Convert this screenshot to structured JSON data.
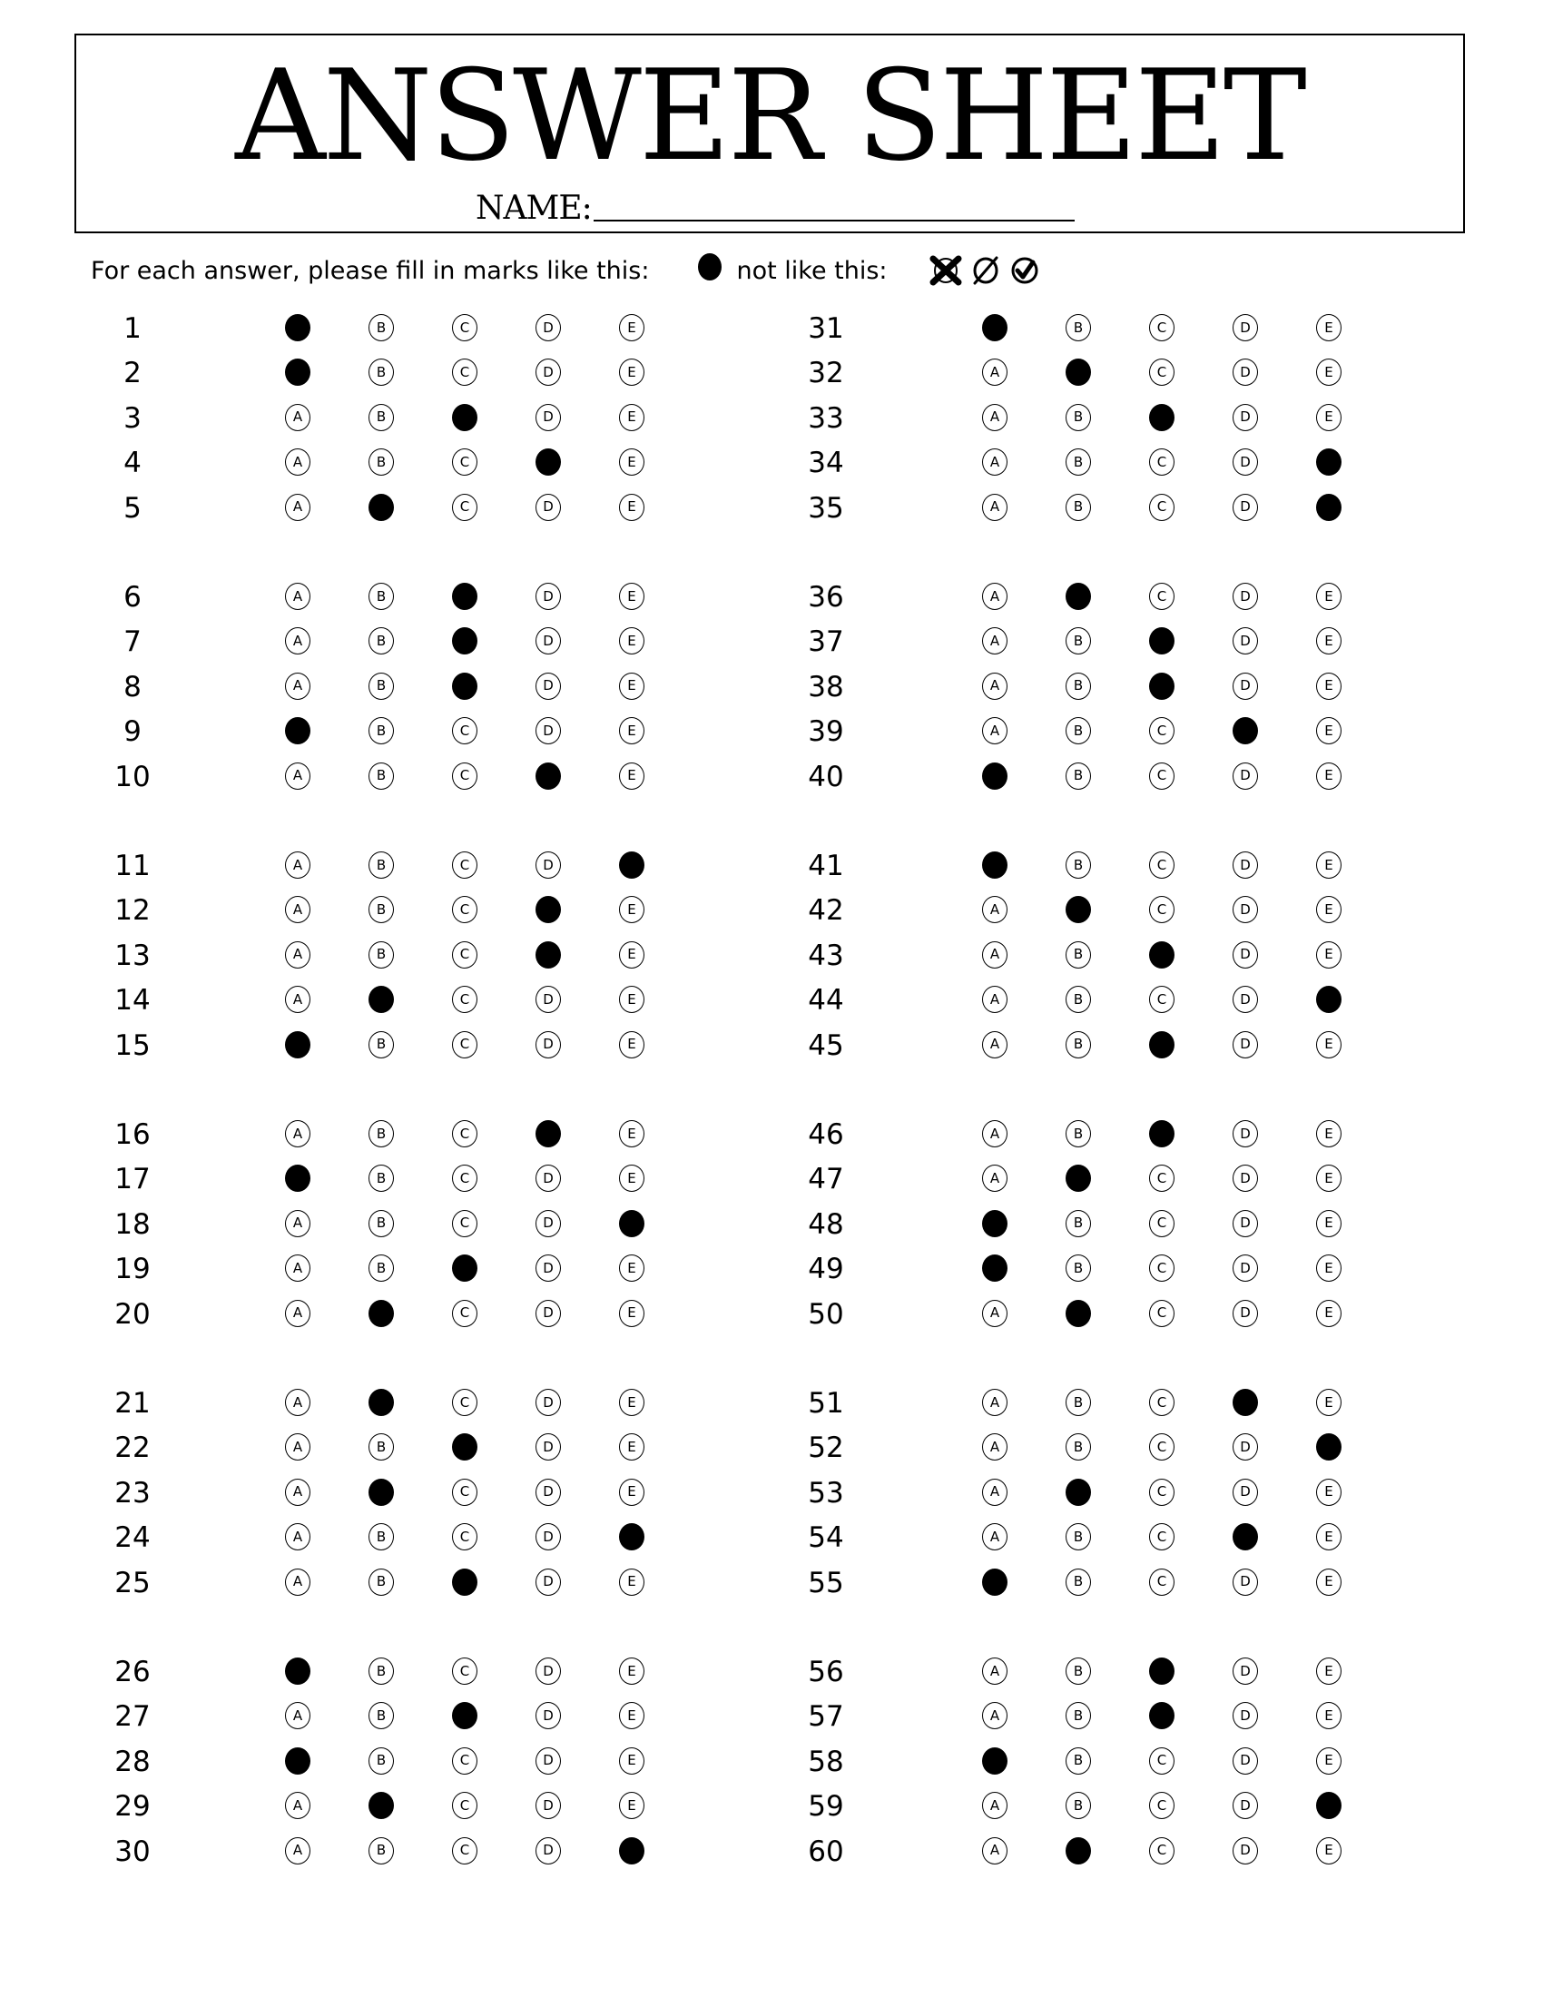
{
  "header": {
    "title": "ANSWER SHEET",
    "name_label": "NAME:"
  },
  "instructions": {
    "text_before": "For each answer, please fill in marks like this:",
    "text_after": "not like this:",
    "good_mark_icon": "filled-circle-icon",
    "bad_mark_icons": [
      "crossed-circle-icon",
      "slashed-circle-icon",
      "checked-circle-icon"
    ]
  },
  "options": [
    "A",
    "B",
    "C",
    "D",
    "E"
  ],
  "questions": [
    {
      "number": "1",
      "answer": "A"
    },
    {
      "number": "2",
      "answer": "A"
    },
    {
      "number": "3",
      "answer": "C"
    },
    {
      "number": "4",
      "answer": "D"
    },
    {
      "number": "5",
      "answer": "B"
    },
    {
      "number": "6",
      "answer": "C"
    },
    {
      "number": "7",
      "answer": "C"
    },
    {
      "number": "8",
      "answer": "C"
    },
    {
      "number": "9",
      "answer": "A"
    },
    {
      "number": "10",
      "answer": "D"
    },
    {
      "number": "11",
      "answer": "E"
    },
    {
      "number": "12",
      "answer": "D"
    },
    {
      "number": "13",
      "answer": "D"
    },
    {
      "number": "14",
      "answer": "B"
    },
    {
      "number": "15",
      "answer": "A"
    },
    {
      "number": "16",
      "answer": "D"
    },
    {
      "number": "17",
      "answer": "A"
    },
    {
      "number": "18",
      "answer": "E"
    },
    {
      "number": "19",
      "answer": "C"
    },
    {
      "number": "20",
      "answer": "B"
    },
    {
      "number": "21",
      "answer": "B"
    },
    {
      "number": "22",
      "answer": "C"
    },
    {
      "number": "23",
      "answer": "B"
    },
    {
      "number": "24",
      "answer": "E"
    },
    {
      "number": "25",
      "answer": "C"
    },
    {
      "number": "26",
      "answer": "A"
    },
    {
      "number": "27",
      "answer": "C"
    },
    {
      "number": "28",
      "answer": "A"
    },
    {
      "number": "29",
      "answer": "B"
    },
    {
      "number": "30",
      "answer": "E"
    },
    {
      "number": "31",
      "answer": "A"
    },
    {
      "number": "32",
      "answer": "B"
    },
    {
      "number": "33",
      "answer": "C"
    },
    {
      "number": "34",
      "answer": "E"
    },
    {
      "number": "35",
      "answer": "E"
    },
    {
      "number": "36",
      "answer": "B"
    },
    {
      "number": "37",
      "answer": "C"
    },
    {
      "number": "38",
      "answer": "C"
    },
    {
      "number": "39",
      "answer": "D"
    },
    {
      "number": "40",
      "answer": "A"
    },
    {
      "number": "41",
      "answer": "A"
    },
    {
      "number": "42",
      "answer": "B"
    },
    {
      "number": "43",
      "answer": "C"
    },
    {
      "number": "44",
      "answer": "E"
    },
    {
      "number": "45",
      "answer": "C"
    },
    {
      "number": "46",
      "answer": "C"
    },
    {
      "number": "47",
      "answer": "B"
    },
    {
      "number": "48",
      "answer": "A"
    },
    {
      "number": "49",
      "answer": "A"
    },
    {
      "number": "50",
      "answer": "B"
    },
    {
      "number": "51",
      "answer": "D"
    },
    {
      "number": "52",
      "answer": "E"
    },
    {
      "number": "53",
      "answer": "B"
    },
    {
      "number": "54",
      "answer": "D"
    },
    {
      "number": "55",
      "answer": "A"
    },
    {
      "number": "56",
      "answer": "C"
    },
    {
      "number": "57",
      "answer": "C"
    },
    {
      "number": "58",
      "answer": "A"
    },
    {
      "number": "59",
      "answer": "E"
    },
    {
      "number": "60",
      "answer": "B"
    }
  ]
}
